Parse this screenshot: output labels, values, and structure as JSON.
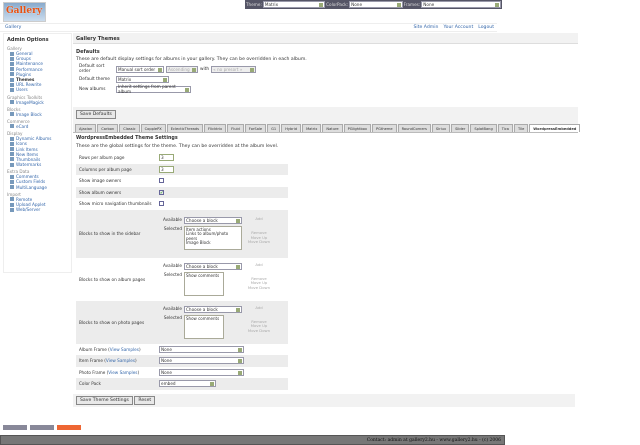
{
  "logo": "Gallery",
  "topbar": {
    "theme_label": "Theme:",
    "theme": "Matrix",
    "colorpack_label": "ColorPack:",
    "colorpack": "None",
    "frames_label": "Frames:",
    "frames": "None"
  },
  "breadcrumb": "Gallery",
  "toplinks": [
    "Site Admin",
    "Your Account",
    "Logout"
  ],
  "sidebar": {
    "title": "Admin Options",
    "groups": [
      {
        "name": "Gallery",
        "items": [
          "General",
          "Groups",
          "Maintenance",
          "Performance",
          "Plugins",
          "Themes",
          "URL Rewrite",
          "Users"
        ]
      },
      {
        "name": "Graphics Toolkits",
        "items": [
          "ImageMagick"
        ]
      },
      {
        "name": "Blocks",
        "items": [
          "Image Block"
        ]
      },
      {
        "name": "Commerce",
        "items": [
          "eCard"
        ]
      },
      {
        "name": "Display",
        "items": [
          "Dynamic Albums",
          "Icons",
          "Link Items",
          "New Items",
          "Thumbnails",
          "Watermarks"
        ]
      },
      {
        "name": "Extra Data",
        "items": [
          "Comments",
          "Custom Fields",
          "MultiLanguage"
        ]
      },
      {
        "name": "Import",
        "items": [
          "Remote",
          "Upload Applet",
          "Web/Server"
        ]
      }
    ]
  },
  "page_title": "Gallery Themes",
  "defaults": {
    "title": "Defaults",
    "desc": "These are default display settings for albums in your gallery. They can be overridden in each album.",
    "sort_label": "Default sort order",
    "sort": "Manual sort order",
    "direction": "Ascending",
    "with": "with",
    "secondary": "« no presort »",
    "theme_label": "Default theme",
    "theme": "Matrix",
    "new_label": "New albums",
    "new": "Inherit settings from parent album",
    "save": "Save Defaults"
  },
  "tabs": [
    "Ajaxian",
    "Carbon",
    "Classic",
    "CopplePX",
    "EclecticThreads",
    "Flicktrix",
    "Fluid",
    "ForSale",
    "G1",
    "Hybrid",
    "Matrix",
    "Nature",
    "PGlightbox",
    "PGtheme",
    "RoundCorners",
    "Siriux",
    "Slider",
    "SplatBang",
    "Tica",
    "Tile",
    "WordpressEmbedded"
  ],
  "active_tab": "WordpressEmbedded",
  "settings": {
    "title": "WordpressEmbedded Theme Settings",
    "desc": "These are the global settings for the theme. They can be overridden at the album level.",
    "rows_label": "Rows per album page",
    "rows": "3",
    "cols_label": "Columns per album page",
    "cols": "3",
    "img_owners": "Show image owners",
    "img_owners_checked": false,
    "album_owners": "Show album owners",
    "album_owners_checked": true,
    "micro": "Show micro navigation thumbnails",
    "micro_checked": false,
    "available": "Available",
    "selected": "Selected",
    "choose": "Choose a block",
    "add": "Add",
    "remove": "Remove",
    "up": "Move Up",
    "down": "Move Down",
    "sidebar_label": "Blocks to show in the sidebar",
    "sidebar_blocks": "Item actions\nLinks to album/photo peers\nImage Block",
    "album_label": "Blocks to show on album pages",
    "album_blocks": "Show comments",
    "photo_label": "Blocks to show on photo pages",
    "photo_blocks": "Show comments",
    "album_frame": "Album Frame",
    "item_frame": "Item Frame",
    "photo_frame": "Photo Frame",
    "view_samples": "View Samples",
    "none": "None",
    "colorpack_label": "Color Pack",
    "colorpack": "embed",
    "save": "Save Theme Settings",
    "reset": "Reset"
  },
  "footer": "Contact: admin at gallery2.hu - www.gallery2.hu - (c) 2006"
}
